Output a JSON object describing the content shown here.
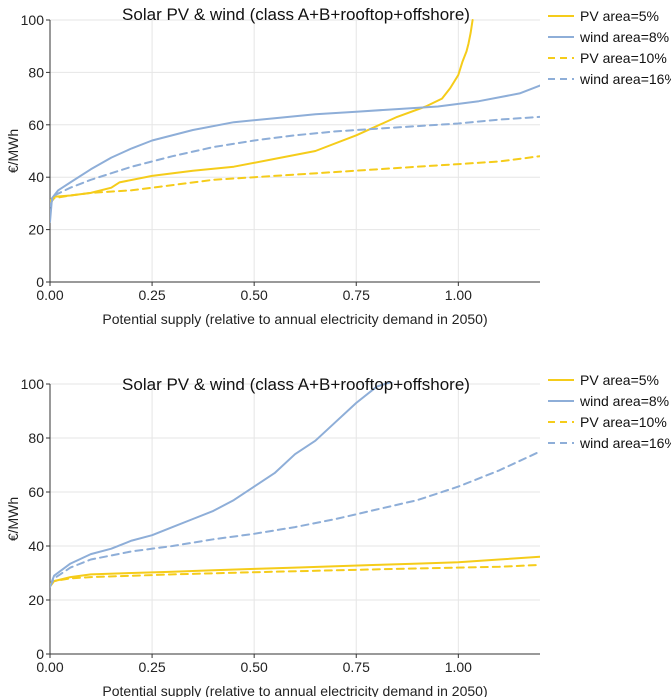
{
  "chart_data": [
    {
      "type": "line",
      "title": "Solar PV & wind (class A+B+rooftop+offshore)",
      "xlabel": "Potential supply (relative to annual electricity demand in 2050)",
      "ylabel": "€/MWh",
      "xlim": [
        0,
        1.2
      ],
      "ylim": [
        0,
        100
      ],
      "x_ticks": [
        "0.00",
        "0.25",
        "0.50",
        "0.75",
        "1.00"
      ],
      "y_ticks": [
        "0",
        "20",
        "40",
        "60",
        "80",
        "100"
      ],
      "grid": true,
      "legend_position": "top-right",
      "series": [
        {
          "name": "PV area=5%",
          "color": "#f5cc1a",
          "dash": "solid",
          "x": [
            0,
            0.01,
            0.05,
            0.1,
            0.15,
            0.17,
            0.25,
            0.35,
            0.45,
            0.55,
            0.65,
            0.75,
            0.85,
            0.92,
            0.96,
            0.98,
            1.0,
            1.01,
            1.02,
            1.025,
            1.03,
            1.035
          ],
          "y": [
            31,
            32.5,
            33,
            34,
            36,
            38,
            40.5,
            42.5,
            44,
            47,
            50,
            56,
            63,
            67,
            70,
            74,
            79,
            84,
            88,
            91,
            95,
            100
          ]
        },
        {
          "name": "wind area=8%",
          "color": "#8eaed8",
          "dash": "solid",
          "x": [
            0,
            0.005,
            0.02,
            0.05,
            0.1,
            0.15,
            0.2,
            0.25,
            0.35,
            0.45,
            0.55,
            0.65,
            0.75,
            0.85,
            0.95,
            1.05,
            1.15,
            1.2
          ],
          "y": [
            23,
            32,
            35,
            38,
            43,
            47.5,
            51,
            54,
            58,
            61,
            62.5,
            64,
            65,
            66,
            67,
            69,
            72,
            75
          ]
        },
        {
          "name": "PV area=10%",
          "color": "#f5cc1a",
          "dash": "dashed",
          "x": [
            0,
            0.01,
            0.05,
            0.1,
            0.2,
            0.3,
            0.4,
            0.5,
            0.7,
            0.9,
            1.1,
            1.2
          ],
          "y": [
            30,
            32,
            33,
            34,
            35,
            37,
            39,
            40,
            42,
            44,
            46,
            48
          ]
        },
        {
          "name": "wind area=16%",
          "color": "#8eaed8",
          "dash": "dashed",
          "x": [
            0,
            0.01,
            0.05,
            0.1,
            0.2,
            0.3,
            0.4,
            0.5,
            0.6,
            0.7,
            0.8,
            0.9,
            1.0,
            1.1,
            1.2
          ],
          "y": [
            29,
            33,
            36,
            39,
            44,
            48,
            51.5,
            54,
            56,
            57.5,
            58.5,
            59.5,
            60.5,
            62,
            63
          ]
        }
      ]
    },
    {
      "type": "line",
      "title": "Solar PV & wind (class A+B+rooftop+offshore)",
      "xlabel": "Potential supply (relative to annual electricity demand in 2050)",
      "ylabel": "€/MWh",
      "xlim": [
        0,
        1.2
      ],
      "ylim": [
        0,
        100
      ],
      "x_ticks": [
        "0.00",
        "0.25",
        "0.50",
        "0.75",
        "1.00"
      ],
      "y_ticks": [
        "0",
        "20",
        "40",
        "60",
        "80",
        "100"
      ],
      "grid": true,
      "legend_position": "top-right",
      "series": [
        {
          "name": "PV area=5%",
          "color": "#f5cc1a",
          "dash": "solid",
          "x": [
            0,
            0.01,
            0.05,
            0.1,
            0.2,
            0.3,
            0.4,
            0.5,
            0.6,
            0.7,
            0.8,
            0.9,
            1.0,
            1.1,
            1.2
          ],
          "y": [
            25,
            27,
            28.5,
            29.5,
            30,
            30.5,
            31,
            31.5,
            32,
            32.5,
            33,
            33.5,
            34,
            35,
            36
          ]
        },
        {
          "name": "wind area=8%",
          "color": "#8eaed8",
          "dash": "solid",
          "x": [
            0,
            0.01,
            0.05,
            0.1,
            0.15,
            0.2,
            0.25,
            0.3,
            0.35,
            0.4,
            0.45,
            0.5,
            0.55,
            0.6,
            0.65,
            0.7,
            0.75,
            0.8,
            0.84
          ],
          "y": [
            25,
            29,
            33.5,
            37,
            39,
            42,
            44,
            47,
            50,
            53,
            57,
            62,
            67,
            74,
            79,
            86,
            93,
            99,
            101
          ]
        },
        {
          "name": "PV area=10%",
          "color": "#f5cc1a",
          "dash": "dashed",
          "x": [
            0,
            0.01,
            0.05,
            0.1,
            0.3,
            0.5,
            0.7,
            0.9,
            1.1,
            1.2
          ],
          "y": [
            26,
            27,
            28,
            28.5,
            29.5,
            30.3,
            31,
            31.7,
            32.3,
            33
          ]
        },
        {
          "name": "wind area=16%",
          "color": "#8eaed8",
          "dash": "dashed",
          "x": [
            0,
            0.01,
            0.05,
            0.1,
            0.2,
            0.3,
            0.4,
            0.5,
            0.6,
            0.7,
            0.8,
            0.9,
            1.0,
            1.1,
            1.2
          ],
          "y": [
            25,
            28,
            32,
            35,
            38,
            40,
            42.5,
            44.5,
            47,
            50,
            53.5,
            57,
            62,
            68,
            75
          ]
        }
      ]
    }
  ]
}
